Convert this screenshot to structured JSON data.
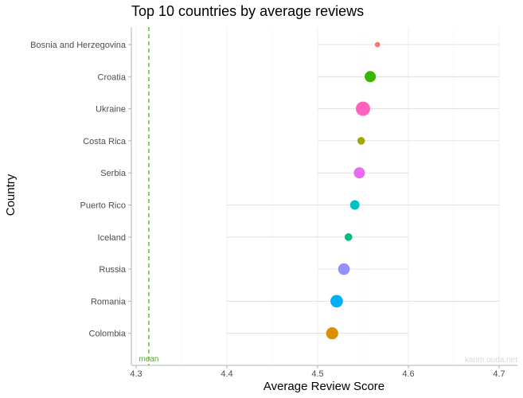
{
  "chart_data": {
    "type": "scatter",
    "title": "Top 10 countries by average reviews",
    "xlabel": "Average Review Score",
    "ylabel": "Country",
    "xlim": [
      4.3,
      4.7
    ],
    "x_ticks": [
      "4.3",
      "4.4",
      "4.5",
      "4.6",
      "4.7"
    ],
    "x_tick_values": [
      4.3,
      4.4,
      4.5,
      4.6,
      4.7
    ],
    "grid": "vertical",
    "legend": "none",
    "mean": {
      "label": "mean",
      "value": 4.314,
      "color": "#4DAF1A"
    },
    "watermark": "karim.ouda.net",
    "categories": [
      "Bosnia and Herzegovina",
      "Croatia",
      "Ukraine",
      "Costa Rica",
      "Serbia",
      "Puerto Rico",
      "Iceland",
      "Russia",
      "Romania",
      "Colombia"
    ],
    "points": [
      {
        "country": "Bosnia and Herzegovina",
        "score": 4.566,
        "range": [
          4.5,
          4.7
        ],
        "relative_count": 1,
        "color": "#F8766D"
      },
      {
        "country": "Croatia",
        "score": 4.558,
        "range": [
          4.5,
          4.7
        ],
        "relative_count": 4,
        "color": "#39B600"
      },
      {
        "country": "Ukraine",
        "score": 4.55,
        "range": [
          4.5,
          4.7
        ],
        "relative_count": 8,
        "color": "#FF62BC"
      },
      {
        "country": "Costa Rica",
        "score": 4.548,
        "range": [
          4.5,
          4.7
        ],
        "relative_count": 1.5,
        "color": "#A3A500"
      },
      {
        "country": "Serbia",
        "score": 4.546,
        "range": [
          4.5,
          4.6
        ],
        "relative_count": 4,
        "color": "#E76BF3"
      },
      {
        "country": "Puerto Rico",
        "score": 4.541,
        "range": [
          4.4,
          4.7
        ],
        "relative_count": 2.5,
        "color": "#00BFC4"
      },
      {
        "country": "Iceland",
        "score": 4.534,
        "range": [
          4.4,
          4.6
        ],
        "relative_count": 1.5,
        "color": "#00BF7D"
      },
      {
        "country": "Russia",
        "score": 4.529,
        "range": [
          4.5,
          4.6
        ],
        "relative_count": 4.5,
        "color": "#9590FF"
      },
      {
        "country": "Romania",
        "score": 4.521,
        "range": [
          4.4,
          4.7
        ],
        "relative_count": 5.5,
        "color": "#00B0F6"
      },
      {
        "country": "Colombia",
        "score": 4.516,
        "range": [
          4.4,
          4.6
        ],
        "relative_count": 5,
        "color": "#D89000"
      }
    ]
  }
}
